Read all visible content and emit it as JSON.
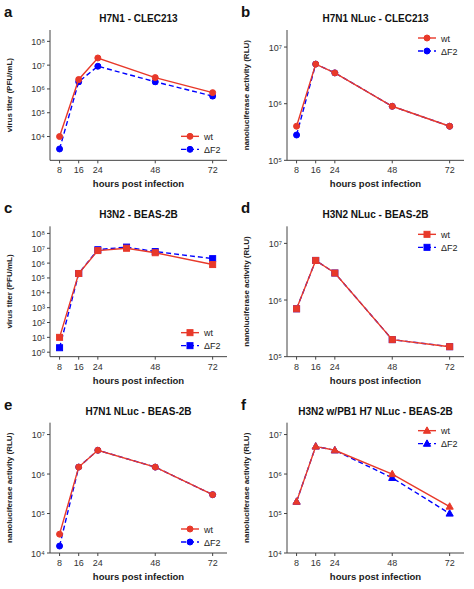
{
  "chart_data": [
    {
      "type": "line",
      "title": "H7N1 - CLEC213",
      "annotations": [
        "a"
      ],
      "x_label": "hours post infection",
      "y_label": "virus titer (PFU/mL)",
      "log": "y",
      "legend": "lower right",
      "x": [
        8,
        16,
        24,
        48,
        72
      ],
      "xlim": [
        4,
        78
      ],
      "xticks": [
        8,
        16,
        24,
        48,
        72
      ],
      "ylim": [
        1000.0,
        300000000.0
      ],
      "yticks": [
        {
          "value": 10000.0,
          "label": "10⁴"
        },
        {
          "value": 100000.0,
          "label": "10⁵"
        },
        {
          "value": 1000000.0,
          "label": "10⁶"
        },
        {
          "value": 10000000.0,
          "label": "10⁷"
        },
        {
          "value": 100000000.0,
          "label": "10⁸"
        }
      ],
      "series": [
        {
          "name": "wt",
          "color": "#e8392a",
          "marker": "circle",
          "line_style": "solid",
          "values": [
            10000.0,
            2500000.0,
            20000000.0,
            3000000.0,
            700000.0
          ],
          "errors": [
            0,
            500000.0,
            3000000.0,
            500000.0,
            100000.0
          ]
        },
        {
          "name": "ΔF2",
          "color": "#0000ff",
          "marker": "circle",
          "line_style": "dashed",
          "values": [
            3000.0,
            2000000.0,
            9000000.0,
            2000000.0,
            500000.0
          ],
          "errors": [
            0,
            400000.0,
            1500000.0,
            400000.0,
            100000.0
          ]
        }
      ]
    },
    {
      "type": "line",
      "title": "H7N1 NLuc - CLEC213",
      "annotations": [
        "b"
      ],
      "x_label": "hours post infection",
      "y_label": "nanoluciferase activity (RLU)",
      "log": "y",
      "legend": "upper right",
      "x": [
        8,
        16,
        24,
        48,
        72
      ],
      "xlim": [
        4,
        78
      ],
      "xticks": [
        8,
        16,
        24,
        48,
        72
      ],
      "ylim": [
        100000.0,
        20000000.0
      ],
      "yticks": [
        {
          "value": 100000.0,
          "label": "10⁵"
        },
        {
          "value": 1000000.0,
          "label": "10⁶"
        },
        {
          "value": 10000000.0,
          "label": "10⁷"
        }
      ],
      "series": [
        {
          "name": "wt",
          "color": "#e8392a",
          "marker": "circle",
          "line_style": "solid",
          "values": [
            400000.0,
            5000000.0,
            3500000.0,
            900000.0,
            400000.0
          ]
        },
        {
          "name": "ΔF2",
          "color": "#0000ff",
          "marker": "circle",
          "line_style": "dashed",
          "values": [
            280000.0,
            5000000.0,
            3500000.0,
            900000.0,
            400000.0
          ]
        }
      ]
    },
    {
      "type": "line",
      "title": "H3N2 - BEAS-2B",
      "annotations": [
        "c"
      ],
      "x_label": "hours post infection",
      "y_label": "virus titer (PFU/mL)",
      "log": "y",
      "legend": "lower right",
      "x": [
        8,
        16,
        24,
        36,
        48,
        72
      ],
      "xlim": [
        4,
        78
      ],
      "xticks": [
        8,
        16,
        24,
        48,
        72
      ],
      "ylim": [
        0.5,
        300000000.0
      ],
      "yticks": [
        {
          "value": 1,
          "label": "10⁰"
        },
        {
          "value": 10,
          "label": "10¹"
        },
        {
          "value": 100,
          "label": "10²"
        },
        {
          "value": 1000.0,
          "label": "10³"
        },
        {
          "value": 10000.0,
          "label": "10⁴"
        },
        {
          "value": 100000.0,
          "label": "10⁵"
        },
        {
          "value": 1000000.0,
          "label": "10⁶"
        },
        {
          "value": 10000000.0,
          "label": "10⁷"
        },
        {
          "value": 100000000.0,
          "label": "10⁸"
        }
      ],
      "series": [
        {
          "name": "wt",
          "color": "#e8392a",
          "marker": "square",
          "line_style": "solid",
          "values": [
            10,
            200000.0,
            7000000.0,
            10000000.0,
            5000000.0,
            800000.0
          ],
          "errors": [
            0,
            30000.0,
            1500000.0,
            2000000.0,
            1000000.0,
            100000.0
          ]
        },
        {
          "name": "ΔF2",
          "color": "#0000ff",
          "marker": "square",
          "line_style": "dashed",
          "values": [
            2,
            200000.0,
            8000000.0,
            12000000.0,
            6000000.0,
            2000000.0
          ],
          "errors": [
            0,
            30000.0,
            1500000.0,
            2500000.0,
            1000000.0,
            300000.0
          ]
        }
      ]
    },
    {
      "type": "line",
      "title": "H3N2 NLuc - BEAS-2B",
      "annotations": [
        "d"
      ],
      "x_label": "hours post infection",
      "y_label": "nanoluciferase activity (RLU)",
      "log": "y",
      "legend": "upper right",
      "x": [
        8,
        16,
        24,
        48,
        72
      ],
      "xlim": [
        4,
        78
      ],
      "xticks": [
        8,
        16,
        24,
        48,
        72
      ],
      "ylim": [
        100000.0,
        20000000.0
      ],
      "yticks": [
        {
          "value": 100000.0,
          "label": "10⁵"
        },
        {
          "value": 1000000.0,
          "label": "10⁶"
        },
        {
          "value": 10000000.0,
          "label": "10⁷"
        }
      ],
      "series": [
        {
          "name": "wt",
          "color": "#e8392a",
          "marker": "square",
          "line_style": "solid",
          "values": [
            700000.0,
            5000000.0,
            3000000.0,
            200000.0,
            150000.0
          ]
        },
        {
          "name": "ΔF2",
          "color": "#0000ff",
          "marker": "square",
          "line_style": "dashed",
          "values": [
            700000.0,
            5000000.0,
            3000000.0,
            200000.0,
            150000.0
          ]
        }
      ]
    },
    {
      "type": "line",
      "title": "H7N1 NLuc - BEAS-2B",
      "annotations": [
        "e"
      ],
      "x_label": "hours post infection",
      "y_label": "nanoluciferase activity (RLU)",
      "log": "y",
      "legend": "lower right",
      "x": [
        8,
        16,
        24,
        48,
        72
      ],
      "xlim": [
        4,
        78
      ],
      "xticks": [
        8,
        16,
        24,
        48,
        72
      ],
      "ylim": [
        10000.0,
        20000000.0
      ],
      "yticks": [
        {
          "value": 10000.0,
          "label": "10⁴"
        },
        {
          "value": 100000.0,
          "label": "10⁵"
        },
        {
          "value": 1000000.0,
          "label": "10⁶"
        },
        {
          "value": 10000000.0,
          "label": "10⁷"
        }
      ],
      "series": [
        {
          "name": "wt",
          "color": "#e8392a",
          "marker": "circle",
          "line_style": "solid",
          "values": [
            30000.0,
            1500000.0,
            4000000.0,
            1500000.0,
            300000.0
          ]
        },
        {
          "name": "ΔF2",
          "color": "#0000ff",
          "marker": "circle",
          "line_style": "dashed",
          "values": [
            15000.0,
            1500000.0,
            4000000.0,
            1500000.0,
            300000.0
          ]
        }
      ]
    },
    {
      "type": "line",
      "title": "H3N2 w/PB1 H7 NLuc - BEAS-2B",
      "annotations": [
        "f"
      ],
      "x_label": "hours post infection",
      "y_label": "nanoluciferase activity (RLU)",
      "log": "y",
      "legend": "upper right",
      "x": [
        8,
        16,
        24,
        48,
        72
      ],
      "xlim": [
        4,
        78
      ],
      "xticks": [
        8,
        16,
        24,
        48,
        72
      ],
      "ylim": [
        10000.0,
        20000000.0
      ],
      "yticks": [
        {
          "value": 10000.0,
          "label": "10⁴"
        },
        {
          "value": 100000.0,
          "label": "10⁵"
        },
        {
          "value": 1000000.0,
          "label": "10⁶"
        },
        {
          "value": 10000000.0,
          "label": "10⁷"
        }
      ],
      "series": [
        {
          "name": "wt",
          "color": "#e8392a",
          "marker": "triangle",
          "line_style": "solid",
          "values": [
            200000.0,
            5000000.0,
            4000000.0,
            1000000.0,
            150000.0
          ]
        },
        {
          "name": "ΔF2",
          "color": "#0000ff",
          "marker": "triangle",
          "line_style": "dashed",
          "values": [
            200000.0,
            5000000.0,
            4000000.0,
            800000.0,
            100000.0
          ]
        }
      ]
    }
  ]
}
